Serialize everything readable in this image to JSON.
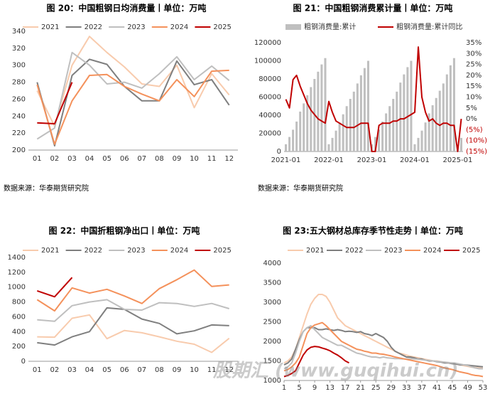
{
  "chart_data": [
    {
      "type": "line",
      "title": "图 20：中国粗钢日均消费量丨单位：万吨",
      "categories": [
        "01",
        "02",
        "03",
        "04",
        "05",
        "06",
        "07",
        "08",
        "09",
        "10",
        "11",
        "12"
      ],
      "ylim": [
        200,
        340
      ],
      "yticks": [
        200,
        220,
        240,
        260,
        280,
        300,
        320,
        340
      ],
      "grid": false,
      "series": [
        {
          "name": "2021",
          "color": "#f8cbad",
          "values": [
            270,
            228,
            300,
            334,
            315,
            298,
            278,
            275,
            300,
            250,
            290,
            265
          ]
        },
        {
          "name": "2022",
          "color": "#7f7f7f",
          "values": [
            280,
            205,
            288,
            307,
            301,
            275,
            258,
            258,
            305,
            277,
            283,
            253
          ]
        },
        {
          "name": "2023",
          "color": "#bfbfbf",
          "values": [
            213,
            226,
            315,
            300,
            278,
            280,
            273,
            290,
            310,
            283,
            299,
            282
          ]
        },
        {
          "name": "2024",
          "color": "#f4915b",
          "values": [
            277,
            207,
            258,
            288,
            289,
            275,
            266,
            258,
            283,
            263,
            293,
            294
          ]
        },
        {
          "name": "2025",
          "color": "#c00000",
          "values": [
            232,
            231,
            280,
            null,
            null,
            null,
            null,
            null,
            null,
            null,
            null,
            null
          ]
        }
      ]
    },
    {
      "type": "bar_line",
      "title": "图 21：中国粗钢消费累计量丨单位：万吨",
      "categories": [
        "2021-01",
        null,
        null,
        null,
        null,
        null,
        null,
        null,
        null,
        null,
        null,
        null,
        "2022-01",
        null,
        null,
        null,
        null,
        null,
        null,
        null,
        null,
        null,
        null,
        null,
        "2023-01",
        null,
        null,
        null,
        null,
        null,
        null,
        null,
        null,
        null,
        null,
        null,
        "2024-01",
        null,
        null,
        null,
        null,
        null,
        null,
        null,
        null,
        null,
        null,
        null,
        "2025-01",
        null
      ],
      "ylim": [
        0,
        120000
      ],
      "yticks": [
        0,
        20000,
        40000,
        60000,
        80000,
        100000,
        120000
      ],
      "y2lim": [
        -15,
        35
      ],
      "y2ticks": [
        {
          "value": -15,
          "label": "(15%)"
        },
        {
          "value": -10,
          "label": "(10%)"
        },
        {
          "value": -5,
          "label": "(5%)"
        },
        {
          "value": 0,
          "label": "0%"
        },
        {
          "value": 5,
          "label": "5%"
        },
        {
          "value": 10,
          "label": "10%"
        },
        {
          "value": 15,
          "label": "15%"
        },
        {
          "value": 20,
          "label": "20%"
        },
        {
          "value": 25,
          "label": "25%"
        },
        {
          "value": 30,
          "label": "30%"
        },
        {
          "value": 35,
          "label": "35%"
        }
      ],
      "grid": false,
      "series": [
        {
          "name": "粗钢消费量:累计",
          "color": "#bfbfbf",
          "type": "bar",
          "values": [
            8000,
            16000,
            24000,
            33000,
            44000,
            53000,
            62000,
            71000,
            80000,
            88000,
            96000,
            103000,
            8000,
            15000,
            23000,
            32000,
            41000,
            50000,
            58000,
            66000,
            75000,
            84000,
            92000,
            100000,
            8000,
            16000,
            24000,
            33000,
            42000,
            50000,
            58000,
            66000,
            76000,
            85000,
            93000,
            100000,
            8000,
            15000,
            23000,
            32000,
            42000,
            51000,
            59000,
            67000,
            75000,
            85000,
            95000,
            103000,
            8000,
            15000
          ]
        },
        {
          "name": "粗钢消费量:累计同比",
          "color": "#c00000",
          "type": "line",
          "axis": "y2",
          "values": [
            9,
            5,
            18,
            20,
            15,
            11,
            7,
            4,
            2,
            0,
            -1,
            -2,
            8,
            3,
            -1,
            -2,
            -3,
            -4,
            -4,
            -4,
            -3,
            -2,
            -2,
            -2,
            -15,
            -15,
            -3,
            -2,
            -2,
            -2,
            -1,
            -1,
            0,
            0,
            1,
            2,
            3,
            33,
            10,
            3,
            -1,
            0,
            -2,
            -3,
            -2,
            -2,
            -3,
            -3,
            -15,
            0
          ]
        }
      ]
    },
    {
      "type": "line",
      "title": "图 22：中国折粗钢净出口丨单位：万吨",
      "categories": [
        "01",
        "02",
        "03",
        "04",
        "05",
        "06",
        "07",
        "08",
        "09",
        "10",
        "11",
        "12"
      ],
      "ylim": [
        0,
        1400
      ],
      "yticks": [
        0,
        200,
        400,
        600,
        800,
        1000,
        1200,
        1400
      ],
      "grid": false,
      "series": [
        {
          "name": "2021",
          "color": "#f8cbad",
          "values": [
            330,
            325,
            580,
            625,
            305,
            415,
            385,
            330,
            270,
            230,
            120,
            310
          ]
        },
        {
          "name": "2022",
          "color": "#7f7f7f",
          "values": [
            250,
            220,
            330,
            400,
            720,
            700,
            570,
            510,
            370,
            410,
            490,
            480
          ]
        },
        {
          "name": "2023",
          "color": "#bfbfbf",
          "values": [
            560,
            540,
            750,
            800,
            830,
            700,
            690,
            790,
            780,
            740,
            780,
            710
          ]
        },
        {
          "name": "2024",
          "color": "#f4915b",
          "values": [
            830,
            680,
            990,
            920,
            970,
            880,
            780,
            980,
            1100,
            1230,
            1010,
            1030
          ]
        },
        {
          "name": "2025",
          "color": "#c00000",
          "values": [
            950,
            870,
            1130,
            null,
            null,
            null,
            null,
            null,
            null,
            null,
            null,
            null
          ]
        }
      ]
    },
    {
      "type": "line",
      "title": "图 23:五大钢材总库存季节性走势丨单位：万吨",
      "x": [
        1,
        2,
        3,
        4,
        5,
        6,
        7,
        8,
        9,
        10,
        11,
        12,
        13,
        14,
        15,
        16,
        17,
        18,
        19,
        20,
        21,
        22,
        23,
        24,
        25,
        26,
        27,
        28,
        29,
        30,
        31,
        32,
        33,
        34,
        35,
        36,
        37,
        38,
        39,
        40,
        41,
        42,
        43,
        44,
        45,
        46,
        47,
        48,
        49,
        50,
        51,
        52,
        53
      ],
      "xlim": [
        1,
        53
      ],
      "xticks": [
        1,
        5,
        9,
        13,
        17,
        21,
        25,
        29,
        33,
        37,
        41,
        45,
        49,
        53
      ],
      "ylim": [
        1000,
        4000
      ],
      "yticks": [
        1000,
        1500,
        2000,
        2500,
        3000,
        3500,
        4000
      ],
      "grid": false,
      "series": [
        {
          "name": "2021",
          "color": "#f8cbad",
          "values": [
            1450,
            1500,
            1600,
            1800,
            2100,
            2400,
            2700,
            2950,
            3100,
            3200,
            3200,
            3150,
            3000,
            2800,
            2600,
            2500,
            2400,
            2350,
            2300,
            2250,
            2200,
            2150,
            2100,
            2050,
            2000,
            1950,
            1900,
            1850,
            1800,
            1750,
            1700,
            1680,
            1650,
            1620,
            1600,
            1580,
            1560,
            1540,
            1520,
            1500,
            1500,
            1480,
            1460,
            1450,
            1440,
            1420,
            1400,
            1380,
            1360,
            1340,
            1330,
            1320,
            1310
          ]
        },
        {
          "name": "2022",
          "color": "#7f7f7f",
          "values": [
            1400,
            1450,
            1550,
            1800,
            2050,
            2250,
            2350,
            2350,
            2350,
            2300,
            2300,
            2320,
            2300,
            2280,
            2300,
            2280,
            2250,
            2260,
            2250,
            2230,
            2250,
            2200,
            2180,
            2150,
            2200,
            2150,
            2100,
            2000,
            1850,
            1750,
            1700,
            1650,
            1600,
            1600,
            1580,
            1550,
            1550,
            1520,
            1500,
            1500,
            1480,
            1470,
            1450,
            1450,
            1430,
            1420,
            1400,
            1400,
            1390,
            1380,
            1370,
            1360,
            1350
          ]
        },
        {
          "name": "2023",
          "color": "#bfbfbf",
          "values": [
            1300,
            1350,
            1450,
            1700,
            2000,
            2250,
            2350,
            2400,
            2300,
            2200,
            2100,
            2050,
            2000,
            1950,
            1900,
            1900,
            1850,
            1800,
            1750,
            1700,
            1680,
            1650,
            1620,
            1600,
            1600,
            1580,
            1600,
            1580,
            1570,
            1560,
            1560,
            1550,
            1550,
            1560,
            1550,
            1540,
            1530,
            1520,
            1510,
            1500,
            1490,
            1480,
            1470,
            1460,
            1450,
            1440,
            1420,
            1400,
            1380,
            1350,
            1320,
            1300,
            1300
          ]
        },
        {
          "name": "2024",
          "color": "#f4915b",
          "values": [
            1250,
            1280,
            1350,
            1450,
            1600,
            1900,
            2200,
            2350,
            2420,
            2450,
            2480,
            2400,
            2300,
            2200,
            2100,
            2000,
            1950,
            1900,
            1850,
            1800,
            1780,
            1750,
            1730,
            1700,
            1700,
            1680,
            1670,
            1650,
            1630,
            1600,
            1580,
            1560,
            1540,
            1520,
            1500,
            1480,
            1460,
            1440,
            1420,
            1400,
            1380,
            1350,
            1320,
            1300,
            1280,
            1250,
            1220,
            1200,
            1180,
            1150,
            1130,
            1120,
            1100
          ]
        },
        {
          "name": "2025",
          "color": "#c00000",
          "values": [
            1100,
            1130,
            1180,
            1250,
            1450,
            1650,
            1780,
            1850,
            1870,
            1860,
            1830,
            1800,
            1760,
            1700,
            1650,
            1580,
            1500,
            1450,
            null,
            null,
            null,
            null,
            null,
            null,
            null,
            null,
            null,
            null,
            null,
            null,
            null,
            null,
            null,
            null,
            null,
            null,
            null,
            null,
            null,
            null,
            null,
            null,
            null,
            null,
            null,
            null,
            null,
            null,
            null,
            null,
            null,
            null,
            null
          ]
        }
      ]
    }
  ],
  "source_notes": [
    "数据来源：华泰期货研究院",
    "数据来源：华泰期货研究院"
  ],
  "watermark": "股期汇 (www.guqihui.cn)"
}
